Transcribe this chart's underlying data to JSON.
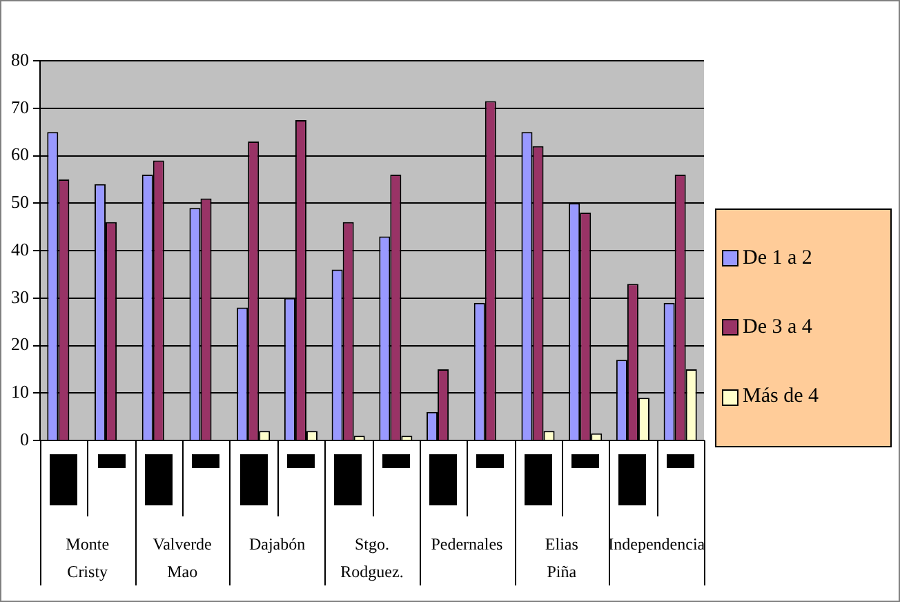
{
  "chart_data": {
    "type": "bar",
    "categories": [
      null,
      null,
      null,
      null,
      null,
      null,
      null,
      null,
      null,
      null,
      null,
      null,
      null,
      null
    ],
    "annotations": [
      "Monte Cristy",
      "Valverde Mao",
      "Dajabón",
      "Stgo. Rodguez.",
      "Pedernales",
      "Elias Piña",
      "Independencia"
    ],
    "series": [
      {
        "name": "De 1 a 2",
        "color": "#9999ff",
        "values": [
          65,
          54,
          56,
          49,
          28,
          30,
          36,
          43,
          6,
          29,
          65,
          50,
          17,
          29
        ]
      },
      {
        "name": "De 3 a 4",
        "color": "#993366",
        "values": [
          55,
          46,
          59,
          51,
          63,
          67.5,
          46,
          56,
          15,
          71.5,
          62,
          48,
          33,
          56
        ]
      },
      {
        "name": "Más de 4",
        "color": "#ffffcc",
        "values": [
          null,
          null,
          null,
          null,
          2,
          2,
          1,
          1,
          null,
          null,
          2,
          1.5,
          9,
          15
        ]
      }
    ],
    "ylim": [
      0,
      80
    ],
    "yticks": [
      0,
      10,
      20,
      30,
      40,
      50,
      60,
      70,
      80
    ],
    "grid": "y",
    "legend": "right"
  }
}
